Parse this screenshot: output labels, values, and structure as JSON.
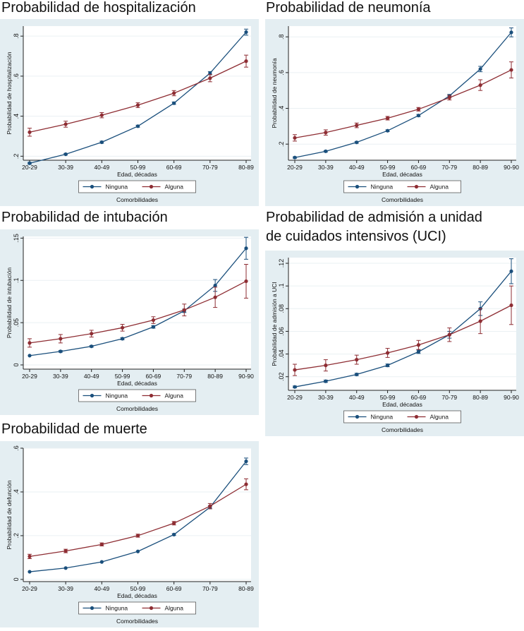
{
  "colors": {
    "ninguna": "#1a4f7c",
    "alguna": "#8e2d33",
    "panel_bg": "#e4eef2"
  },
  "chart_data": [
    {
      "id": "hosp",
      "type": "line",
      "title": "Probabilidad de hospitalización",
      "ylabel": "Probabilidad de hospitalización",
      "xlabel": "Edad, décadas",
      "legend_title": "Comorbilidades",
      "legend_position": "bottom",
      "categories": [
        "20-29",
        "30-39",
        "40-49",
        "50-99",
        "60-69",
        "70-79",
        "80-89"
      ],
      "ylim": [
        0.18,
        0.85
      ],
      "yticks": [
        0.2,
        0.4,
        0.6,
        0.8
      ],
      "ytick_labels": [
        ".2",
        ".4",
        ".6",
        ".8"
      ],
      "series": [
        {
          "name": "Ninguna",
          "values": [
            0.165,
            0.21,
            0.27,
            0.35,
            0.465,
            0.615,
            0.82
          ],
          "err": [
            0.004,
            0.004,
            0.005,
            0.005,
            0.006,
            0.008,
            0.015
          ]
        },
        {
          "name": "Alguna",
          "values": [
            0.32,
            0.36,
            0.405,
            0.455,
            0.515,
            0.59,
            0.675
          ],
          "err": [
            0.02,
            0.015,
            0.013,
            0.012,
            0.013,
            0.018,
            0.03
          ]
        }
      ]
    },
    {
      "id": "neum",
      "type": "line",
      "title": "Probabilidad de neumonía",
      "ylabel": "Probabilidad de neumonía",
      "xlabel": "Edad, décadas",
      "legend_title": "Comorbilidades",
      "legend_position": "bottom",
      "categories": [
        "20-29",
        "30-39",
        "40-49",
        "50-99",
        "60-69",
        "70-79",
        "80-89",
        "90-90"
      ],
      "ylim": [
        0.11,
        0.86
      ],
      "yticks": [
        0.2,
        0.4,
        0.6,
        0.8
      ],
      "ytick_labels": [
        ".2",
        ".4",
        ".6",
        ".8"
      ],
      "series": [
        {
          "name": "Ninguna",
          "values": [
            0.125,
            0.16,
            0.21,
            0.275,
            0.36,
            0.47,
            0.62,
            0.825
          ],
          "err": [
            0.004,
            0.004,
            0.005,
            0.005,
            0.006,
            0.008,
            0.015,
            0.025
          ]
        },
        {
          "name": "Alguna",
          "values": [
            0.235,
            0.265,
            0.305,
            0.345,
            0.395,
            0.46,
            0.53,
            0.615
          ],
          "err": [
            0.018,
            0.015,
            0.013,
            0.01,
            0.01,
            0.013,
            0.03,
            0.045
          ]
        }
      ]
    },
    {
      "id": "intub",
      "type": "line",
      "title": "Probabilidad de intubación",
      "ylabel": "Probabilidad de intubación",
      "xlabel": "Edad, décadas",
      "legend_title": "Comorbilidades",
      "legend_position": "bottom",
      "categories": [
        "20-29",
        "30-39",
        "40-49",
        "50-99",
        "60-69",
        "70-79",
        "80-89",
        "90-90"
      ],
      "ylim": [
        -0.005,
        0.152
      ],
      "yticks": [
        0,
        0.05,
        0.1,
        0.15
      ],
      "ytick_labels": [
        "0",
        ".05",
        ".1",
        ".15"
      ],
      "series": [
        {
          "name": "Ninguna",
          "values": [
            0.011,
            0.016,
            0.022,
            0.031,
            0.045,
            0.064,
            0.094,
            0.138
          ],
          "err": [
            0.0008,
            0.001,
            0.001,
            0.0012,
            0.0015,
            0.002,
            0.007,
            0.013
          ]
        },
        {
          "name": "Alguna",
          "values": [
            0.026,
            0.031,
            0.037,
            0.044,
            0.053,
            0.065,
            0.08,
            0.099
          ],
          "err": [
            0.005,
            0.005,
            0.004,
            0.004,
            0.004,
            0.007,
            0.012,
            0.02
          ]
        }
      ]
    },
    {
      "id": "uci",
      "type": "line",
      "title": "Probabilidad de admisión a unidad de cuidados intensivos (UCI)",
      "title_lines": [
        "Probabilidad de admisión a unidad",
        "de cuidados intensivos (UCI)"
      ],
      "ylabel": "Probabilidad de admisión a UCI",
      "xlabel": "Edad, décadas",
      "legend_title": "Comorbilidades",
      "legend_position": "bottom",
      "categories": [
        "20-29",
        "30-39",
        "40-49",
        "50-99",
        "60-69",
        "70-79",
        "80-89",
        "90-90"
      ],
      "ylim": [
        0.008,
        0.125
      ],
      "yticks": [
        0.02,
        0.04,
        0.06,
        0.08,
        0.1,
        0.12
      ],
      "ytick_labels": [
        ".02",
        ".04",
        ".06",
        ".08",
        ".1",
        ".12"
      ],
      "series": [
        {
          "name": "Ninguna",
          "values": [
            0.011,
            0.016,
            0.022,
            0.03,
            0.042,
            0.057,
            0.08,
            0.113
          ],
          "err": [
            0.0008,
            0.001,
            0.001,
            0.0012,
            0.0015,
            0.003,
            0.006,
            0.011
          ]
        },
        {
          "name": "Alguna",
          "values": [
            0.026,
            0.03,
            0.035,
            0.041,
            0.048,
            0.057,
            0.069,
            0.083
          ],
          "err": [
            0.005,
            0.005,
            0.004,
            0.004,
            0.004,
            0.006,
            0.011,
            0.017
          ]
        }
      ]
    },
    {
      "id": "muerte",
      "type": "line",
      "title": "Probabilidad de muerte",
      "ylabel": "Probabilidad de defunción",
      "xlabel": "Edad, décadas",
      "legend_title": "Comorbilidades",
      "legend_position": "bottom",
      "categories": [
        "20-29",
        "30-39",
        "40-49",
        "50-99",
        "60-69",
        "70-79",
        "80-89"
      ],
      "ylim": [
        -0.01,
        0.6
      ],
      "yticks": [
        0,
        0.2,
        0.4,
        0.6
      ],
      "ytick_labels": [
        "0",
        ".2",
        ".4",
        ".6"
      ],
      "series": [
        {
          "name": "Ninguna",
          "values": [
            0.035,
            0.052,
            0.08,
            0.128,
            0.205,
            0.33,
            0.54
          ],
          "err": [
            0.002,
            0.002,
            0.003,
            0.003,
            0.004,
            0.007,
            0.015
          ]
        },
        {
          "name": "Alguna",
          "values": [
            0.105,
            0.13,
            0.16,
            0.2,
            0.257,
            0.335,
            0.435
          ],
          "err": [
            0.01,
            0.008,
            0.007,
            0.007,
            0.008,
            0.012,
            0.025
          ]
        }
      ]
    }
  ]
}
